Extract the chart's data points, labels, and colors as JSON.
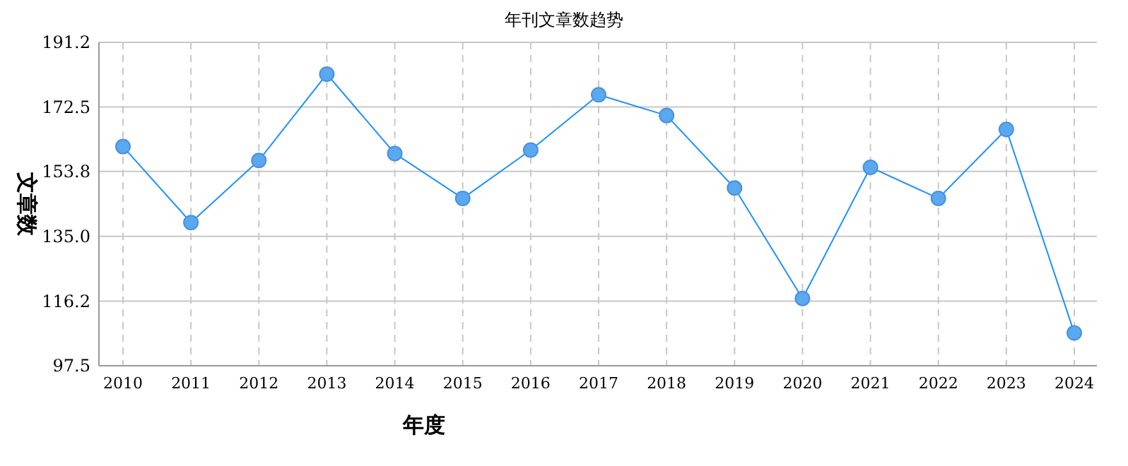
{
  "chart_data": {
    "type": "line",
    "title": "年刊文章数趋势",
    "xlabel": "年度",
    "ylabel": "文章数",
    "categories": [
      "2010",
      "2011",
      "2012",
      "2013",
      "2014",
      "2015",
      "2016",
      "2017",
      "2018",
      "2019",
      "2020",
      "2021",
      "2022",
      "2023",
      "2024"
    ],
    "series": [
      {
        "color": "#1e90ff",
        "values": [
          161,
          139,
          157,
          182,
          159,
          146,
          160,
          176,
          170,
          149,
          117,
          155,
          146,
          166,
          107
        ]
      }
    ],
    "ylim": [
      97.5,
      191.2
    ],
    "yticks": [
      {
        "value": 97.5,
        "label": "97.5"
      },
      {
        "value": 116.2,
        "label": "116.2"
      },
      {
        "value": 135,
        "label": "135.0"
      },
      {
        "value": 153.8,
        "label": "153.8"
      },
      {
        "value": 172.5,
        "label": "172.5"
      },
      {
        "value": 191.2,
        "label": "191.2"
      }
    ],
    "grid": true,
    "marker": "circle",
    "line_style": "solid"
  }
}
